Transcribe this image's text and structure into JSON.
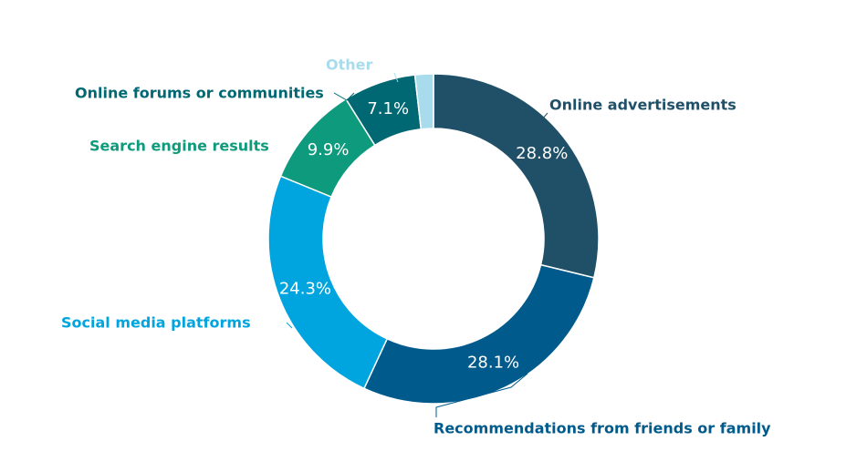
{
  "chart_data": {
    "type": "pie",
    "style": "donut",
    "title": "",
    "slices": [
      {
        "label": "Online advertisements",
        "value": 28.8,
        "display": "28.8%",
        "color": "#1f5068"
      },
      {
        "label": "Recommendations from friends or family",
        "value": 28.1,
        "display": "28.1%",
        "color": "#005b8c"
      },
      {
        "label": "Social media platforms",
        "value": 24.3,
        "display": "24.3%",
        "color": "#00a5df"
      },
      {
        "label": "Search engine results",
        "value": 9.9,
        "display": "9.9%",
        "color": "#0e9a7c"
      },
      {
        "label": "Online forums or communities",
        "value": 7.1,
        "display": "7.1%",
        "color": "#006873"
      },
      {
        "label": "Other",
        "value": 1.8,
        "display": "",
        "color": "#a8dcec"
      }
    ]
  }
}
